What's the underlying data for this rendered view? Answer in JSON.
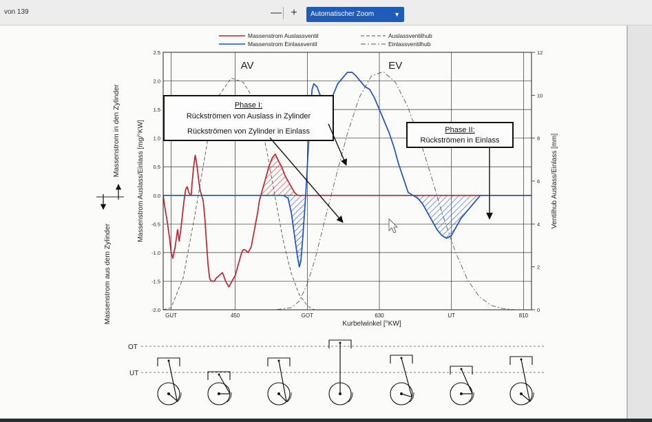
{
  "toolbar": {
    "page_count": "von 139",
    "zoom_out_label": "—",
    "zoom_in_label": "+",
    "zoom_value": "Automatischer Zoom",
    "caret_icon": "chevron-down-icon"
  },
  "chart_data": {
    "type": "line",
    "xlabel": "Kurbelwinkel [°KW]",
    "ylabel_left": "Massenstrom Auslass/Einlass [mg/°KW]",
    "ylabel_right": "Ventilhub Auslass/Einlass [mm]",
    "side_label_top": "Massenstrom in den Zylinder",
    "side_label_bottom": "Massenstrom aus dem Zylinder",
    "xlim": [
      360,
      820
    ],
    "ylim_left": [
      -2.0,
      2.5
    ],
    "ylim_right": [
      0,
      12
    ],
    "x_ticks": [
      {
        "x": 370,
        "label": "GUT"
      },
      {
        "x": 450,
        "label": "450"
      },
      {
        "x": 540,
        "label": "GOT"
      },
      {
        "x": 630,
        "label": "630"
      },
      {
        "x": 720,
        "label": "UT"
      },
      {
        "x": 810,
        "label": "810"
      }
    ],
    "y_ticks_left": [
      {
        "v": 2.5,
        "label": "2.5"
      },
      {
        "v": 2.0,
        "label": "2.0"
      },
      {
        "v": 1.5,
        "label": "1.5"
      },
      {
        "v": 1.0,
        "label": "1.0"
      },
      {
        "v": 0.5,
        "label": "0.5"
      },
      {
        "v": 0.0,
        "label": "0.0"
      },
      {
        "v": -0.5,
        "label": "-0.5"
      },
      {
        "v": -1.0,
        "label": "-1.0"
      },
      {
        "v": -1.5,
        "label": "-1.5"
      },
      {
        "v": -2.0,
        "label": "-2.0"
      }
    ],
    "y_ticks_right": [
      {
        "v": 0,
        "label": "0"
      },
      {
        "v": 2,
        "label": "2"
      },
      {
        "v": 4,
        "label": "4"
      },
      {
        "v": 6,
        "label": "6"
      },
      {
        "v": 8,
        "label": "8"
      },
      {
        "v": 10,
        "label": "10"
      },
      {
        "v": 12,
        "label": "12"
      }
    ],
    "legend": {
      "placement": "top",
      "entries": [
        {
          "label": "Massenstrom Auslassventil",
          "color": "#c8202a",
          "style": "solid"
        },
        {
          "label": "Massenstrom Einlassventil",
          "color": "#1a4fd0",
          "style": "solid"
        },
        {
          "label": "Auslassventilhub",
          "color": "#555555",
          "style": "dashed"
        },
        {
          "label": "Einlassventilhub",
          "color": "#555555",
          "style": "dashdot"
        }
      ]
    },
    "series": [
      {
        "name": "Massenstrom Auslassventil",
        "axis": "left",
        "color": "#c8202a",
        "x": [
          360,
          362,
          365,
          368,
          370,
          372,
          375,
          378,
          380,
          382,
          384,
          386,
          388,
          390,
          392,
          394,
          395,
          396,
          398,
          400,
          402,
          404,
          406,
          408,
          410,
          412,
          414,
          416,
          418,
          420,
          422,
          424,
          426,
          430,
          434,
          438,
          442,
          446,
          450,
          454,
          458,
          460,
          462,
          466,
          470,
          474,
          478,
          480,
          484,
          488,
          492,
          496,
          500,
          504,
          508,
          512,
          516,
          520,
          524,
          528,
          530,
          532,
          534,
          536,
          538,
          540,
          542,
          544,
          546,
          548,
          550,
          552,
          554,
          556,
          558,
          560,
          562,
          564,
          568,
          572,
          580,
          600,
          640,
          700,
          760,
          800,
          820
        ],
        "y": [
          0.0,
          -0.2,
          -0.45,
          -0.75,
          -1.0,
          -1.1,
          -0.9,
          -0.6,
          -0.8,
          -0.6,
          -0.35,
          -0.1,
          0.1,
          0.15,
          0.05,
          0.0,
          0.0,
          0.2,
          0.5,
          0.7,
          0.55,
          0.3,
          0.1,
          0.0,
          -0.1,
          -0.4,
          -0.8,
          -1.2,
          -1.45,
          -1.5,
          -1.5,
          -1.5,
          -1.45,
          -1.4,
          -1.35,
          -1.5,
          -1.6,
          -1.5,
          -1.4,
          -1.2,
          -1.0,
          -0.95,
          -0.95,
          -1.0,
          -0.9,
          -0.6,
          -0.3,
          -0.1,
          0.1,
          0.3,
          0.5,
          0.65,
          0.72,
          0.6,
          0.5,
          0.35,
          0.25,
          0.15,
          0.05,
          0.0,
          0.0,
          0.0,
          0.0,
          0.0,
          0.0,
          0.0,
          0.0,
          0.0,
          0.0,
          0.0,
          0.0,
          0.0,
          0.0,
          0.0,
          0.0,
          0.0,
          0.0,
          0.0,
          0.0,
          0.0,
          0.0,
          0.0,
          0.0,
          0.0,
          0.0,
          0.0,
          0.0
        ]
      },
      {
        "name": "Massenstrom Einlassventil",
        "axis": "left",
        "color": "#1a4fd0",
        "x": [
          360,
          400,
          450,
          480,
          510,
          516,
          520,
          524,
          528,
          530,
          532,
          534,
          536,
          538,
          540,
          542,
          544,
          546,
          548,
          552,
          556,
          560,
          566,
          572,
          578,
          584,
          590,
          596,
          600,
          606,
          612,
          618,
          624,
          630,
          636,
          642,
          648,
          654,
          660,
          666,
          672,
          678,
          684,
          690,
          696,
          702,
          708,
          714,
          720,
          726,
          732,
          738,
          744,
          750,
          756,
          762,
          768,
          774,
          780,
          786,
          792,
          798,
          804,
          810,
          820
        ],
        "y": [
          0.0,
          0.0,
          0.0,
          0.0,
          0.0,
          -0.05,
          -0.3,
          -0.7,
          -1.1,
          -1.25,
          -1.15,
          -0.8,
          -0.4,
          0.0,
          0.5,
          1.0,
          1.5,
          1.85,
          1.95,
          1.9,
          1.75,
          1.6,
          1.5,
          1.75,
          1.95,
          2.05,
          2.15,
          2.15,
          2.1,
          2.0,
          1.9,
          1.85,
          1.7,
          1.5,
          1.3,
          1.1,
          0.85,
          0.55,
          0.3,
          0.05,
          0.0,
          -0.05,
          -0.15,
          -0.3,
          -0.45,
          -0.6,
          -0.7,
          -0.75,
          -0.7,
          -0.55,
          -0.4,
          -0.3,
          -0.2,
          -0.1,
          0.0,
          0.0,
          0.0,
          0.0,
          0.0,
          0.0,
          0.0,
          0.0,
          0.0,
          0.0,
          0.0
        ]
      },
      {
        "name": "Auslassventilhub",
        "axis": "right",
        "color": "#555555",
        "dash": "5,3",
        "x": [
          360,
          370,
          385,
          400,
          415,
          430,
          445,
          460,
          470,
          480,
          490,
          500,
          510,
          520,
          530,
          540,
          545,
          550,
          560,
          580,
          600,
          700,
          820
        ],
        "y": [
          0,
          0.1,
          1.5,
          4.5,
          7.8,
          10.0,
          10.8,
          10.6,
          10.0,
          9.0,
          7.3,
          5.2,
          3.2,
          1.7,
          0.7,
          0.2,
          0.05,
          0.0,
          0.0,
          0.0,
          0.0,
          0.0,
          0.0
        ]
      },
      {
        "name": "Einlassventilhub",
        "axis": "right",
        "color": "#555555",
        "dash": "7,3,2,3",
        "x": [
          360,
          500,
          520,
          530,
          540,
          550,
          560,
          575,
          590,
          605,
          620,
          635,
          650,
          665,
          680,
          695,
          710,
          725,
          740,
          755,
          770,
          785,
          800,
          810,
          820
        ],
        "y": [
          0,
          0,
          0.1,
          0.4,
          1.2,
          2.4,
          3.9,
          6.1,
          8.2,
          9.9,
          10.9,
          11.1,
          10.6,
          9.5,
          8.0,
          6.2,
          4.3,
          2.7,
          1.4,
          0.6,
          0.2,
          0.05,
          0.0,
          0.0,
          0.0
        ]
      }
    ],
    "valve_labels": [
      {
        "text": "AV",
        "x": 465,
        "y_right": 11.1
      },
      {
        "text": "EV",
        "x": 650,
        "y_right": 11.1
      }
    ],
    "annotations": [
      {
        "title": "Phase I:",
        "lines": [
          "Rückströmen von Auslass in Zylinder",
          "Rückströmen von Zylinder in Einlass"
        ]
      },
      {
        "title": "Phase II:",
        "lines": [
          "Rückströmen in Einlass"
        ]
      }
    ],
    "piston_labels": {
      "top": "OT",
      "bottom": "UT"
    }
  }
}
